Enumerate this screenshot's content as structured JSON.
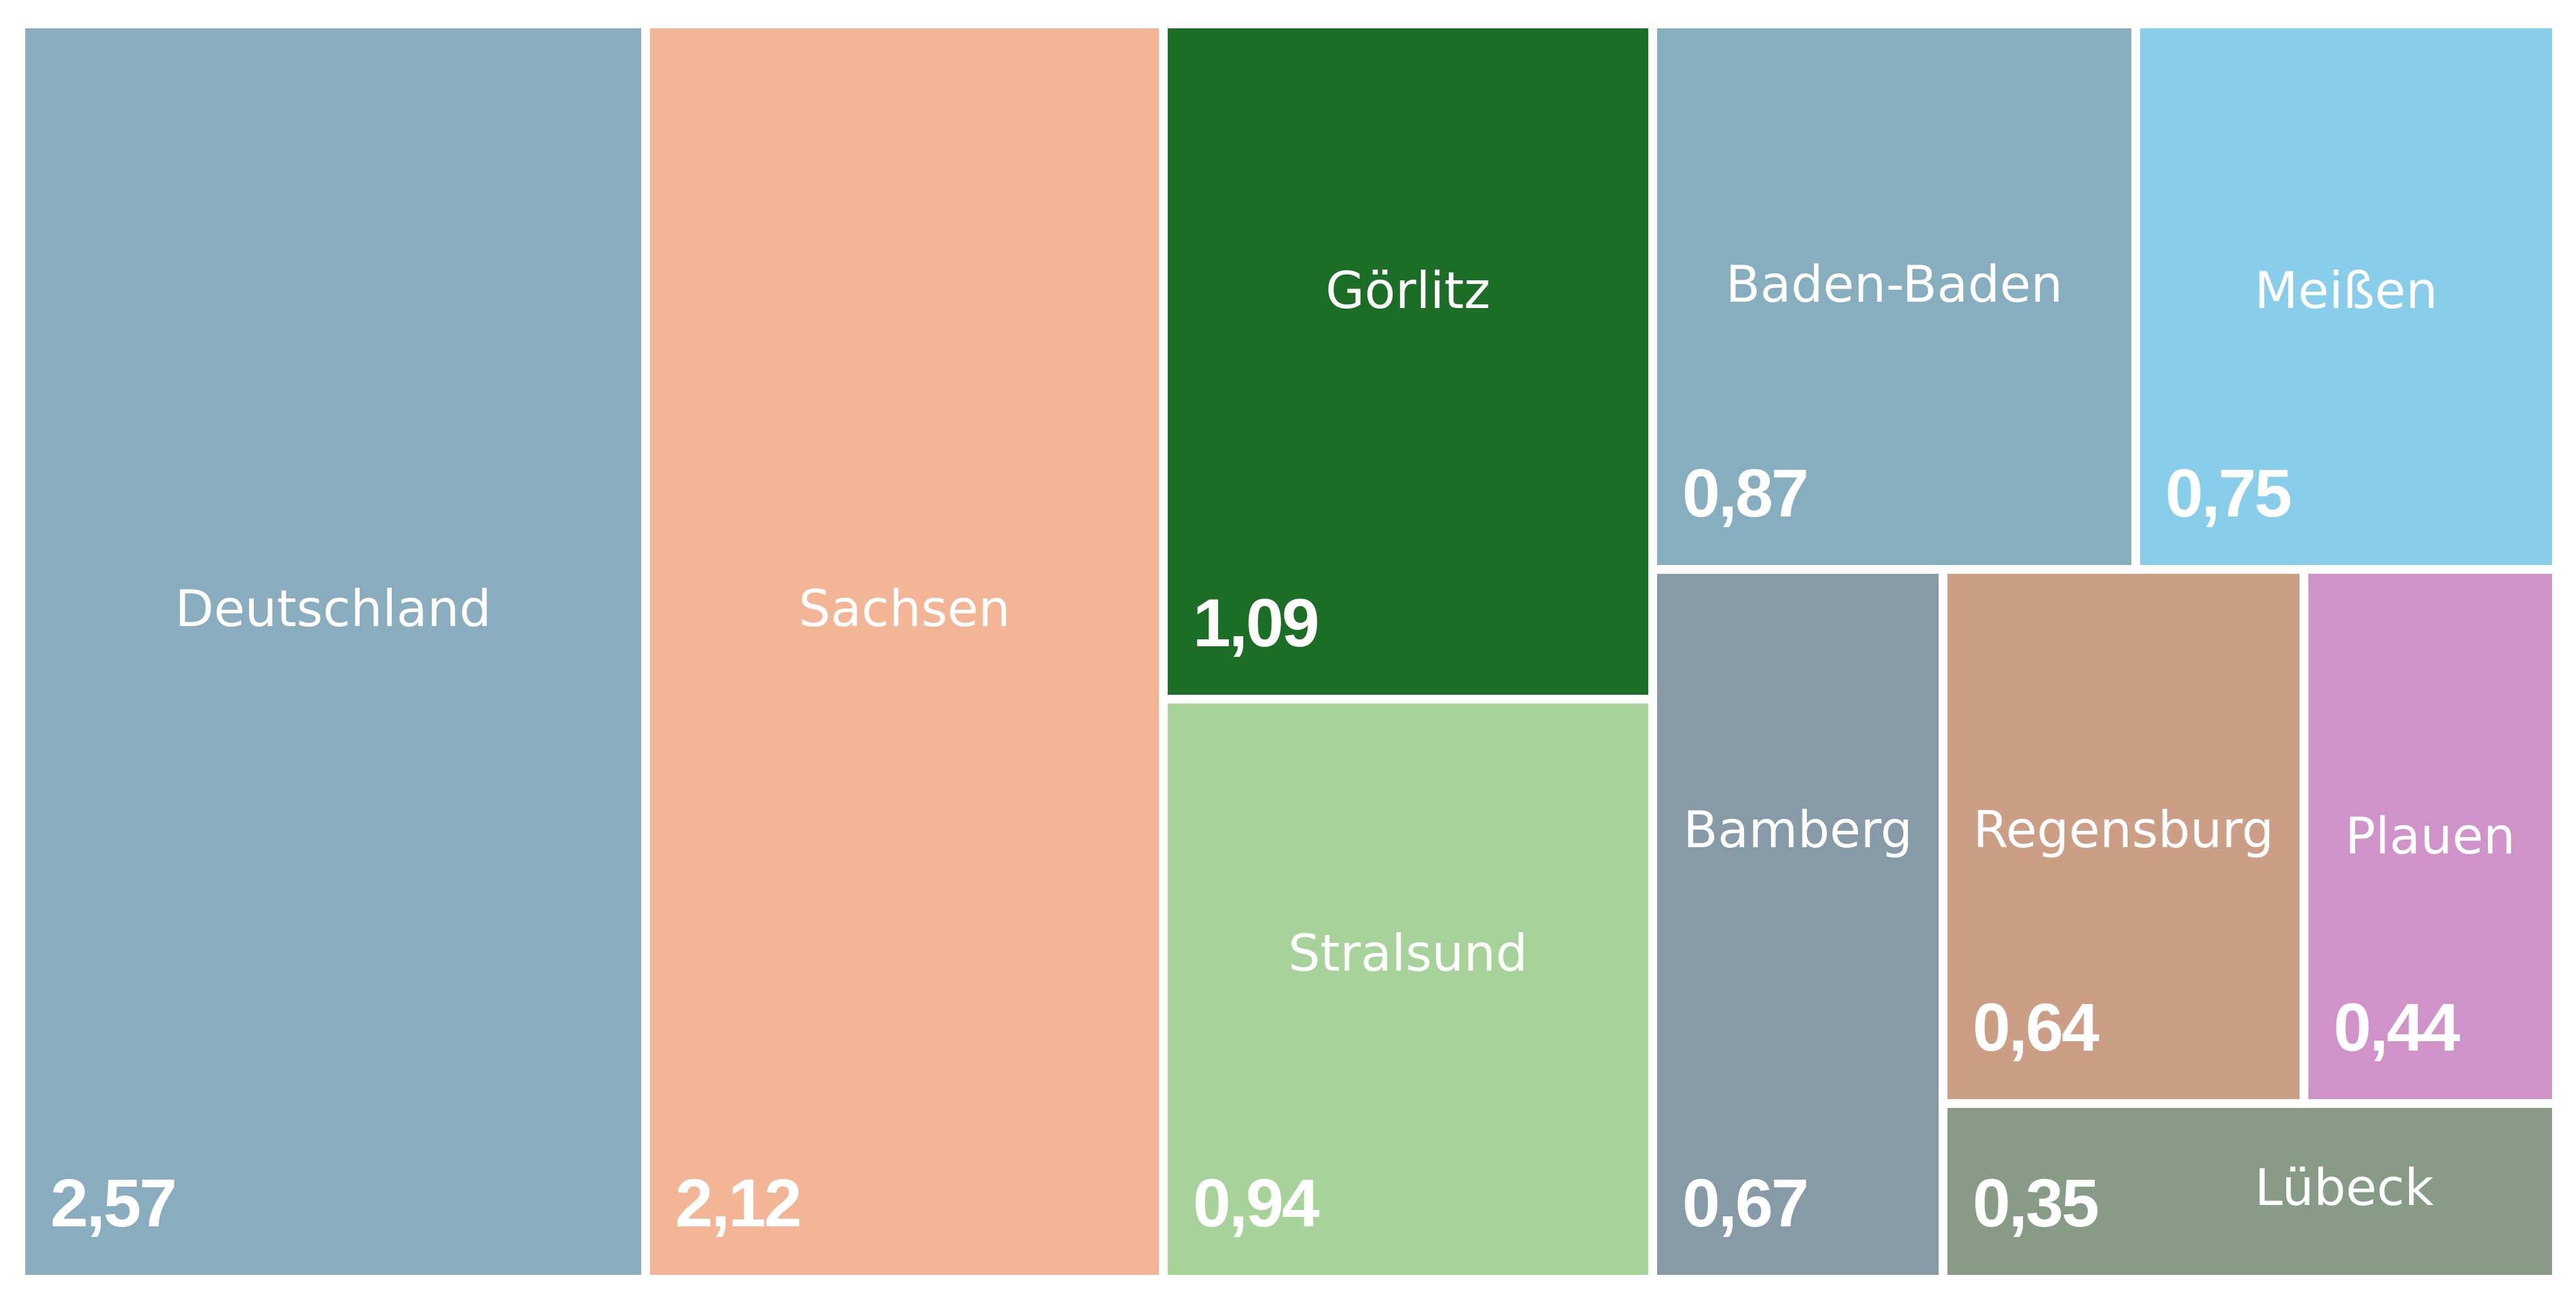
{
  "chart_data": {
    "type": "treemap",
    "title": "",
    "items": [
      {
        "label": "Deutschland",
        "value": 2.57,
        "value_label": "2,57",
        "color": "#89adbf"
      },
      {
        "label": "Sachsen",
        "value": 2.12,
        "value_label": "2,12",
        "color": "#f2b697"
      },
      {
        "label": "Görlitz",
        "value": 1.09,
        "value_label": "1,09",
        "color": "#1c6d26"
      },
      {
        "label": "Stralsund",
        "value": 0.94,
        "value_label": "0,94",
        "color": "#a7d39a"
      },
      {
        "label": "Baden-Baden",
        "value": 0.87,
        "value_label": "0,87",
        "color": "#86aebf"
      },
      {
        "label": "Meißen",
        "value": 0.75,
        "value_label": "0,75",
        "color": "#88cde9"
      },
      {
        "label": "Bamberg",
        "value": 0.67,
        "value_label": "0,67",
        "color": "#869ba7"
      },
      {
        "label": "Regensburg",
        "value": 0.64,
        "value_label": "0,64",
        "color": "#cb9e85"
      },
      {
        "label": "Plauen",
        "value": 0.44,
        "value_label": "0,44",
        "color": "#d093c9"
      },
      {
        "label": "Lübeck",
        "value": 0.35,
        "value_label": "0,35",
        "color": "#879b86"
      }
    ]
  }
}
